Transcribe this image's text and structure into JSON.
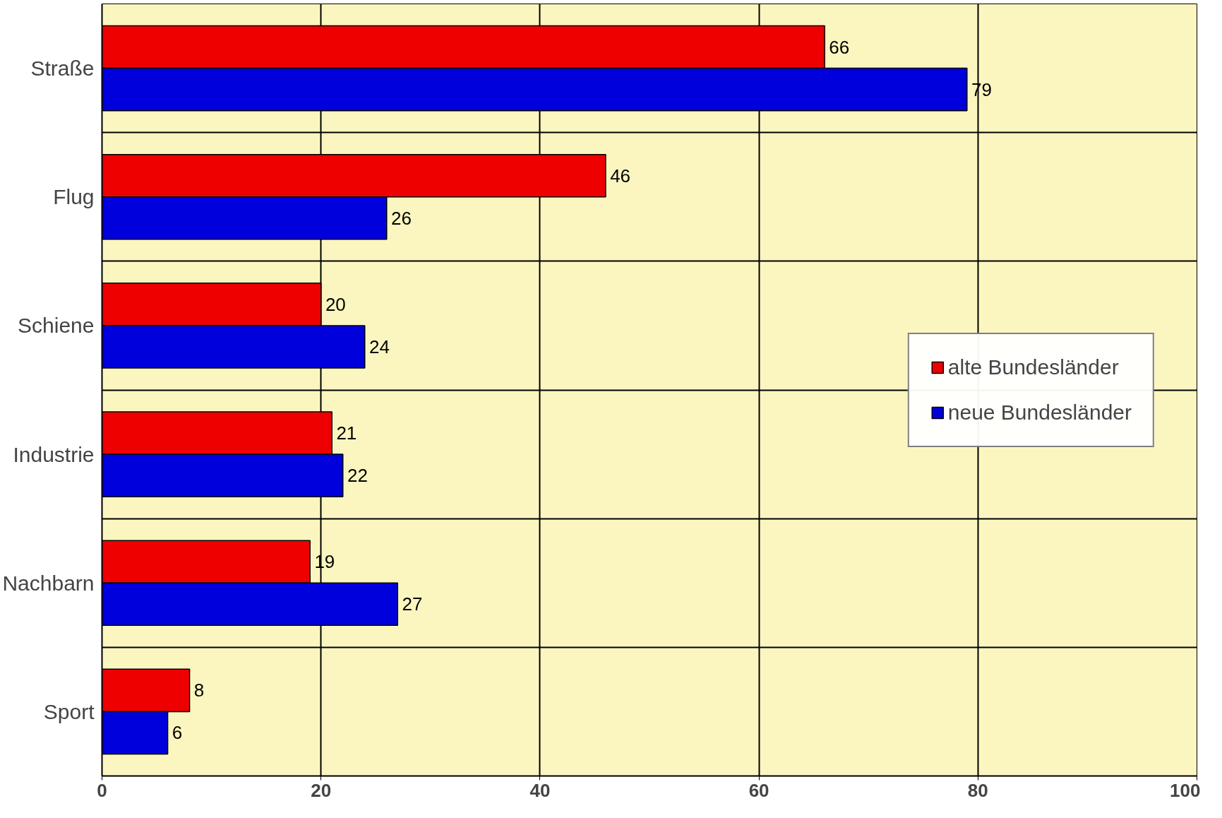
{
  "chart_data": {
    "type": "bar",
    "orientation": "horizontal",
    "categories": [
      "Straße",
      "Flug",
      "Schiene",
      "Industrie",
      "Nachbarn",
      "Sport"
    ],
    "series": [
      {
        "name": "alte Bundesländer",
        "color": "#ee0000",
        "values": [
          66,
          46,
          20,
          21,
          19,
          8
        ]
      },
      {
        "name": "neue Bundesländer",
        "color": "#0000dd",
        "values": [
          79,
          26,
          24,
          22,
          27,
          6
        ]
      }
    ],
    "xlim": [
      0,
      100
    ],
    "xticks": [
      0,
      20,
      40,
      60,
      80,
      100
    ],
    "data_labels": true,
    "grid": true,
    "legend": "right"
  }
}
